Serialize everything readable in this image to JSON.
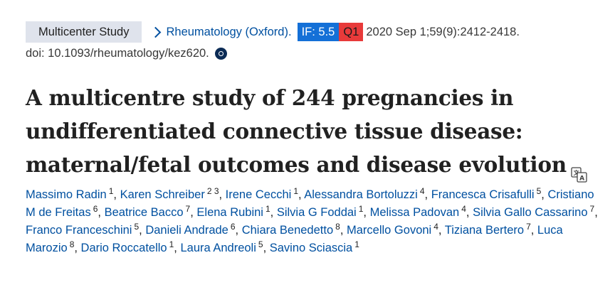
{
  "header": {
    "article_type": "Multicenter Study",
    "journal": "Rheumatology (Oxford).",
    "impact_factor": "IF: 5.5",
    "quartile": "Q1",
    "citation": "2020 Sep 1;59(9):2412-2418.",
    "doi": "doi: 10.1093/rheumatology/kez620."
  },
  "article": {
    "title": "A multicentre study of 244 pregnancies in undifferentiated connective tissue disease: maternal/fetal outcomes and disease evolution"
  },
  "authors": [
    {
      "name": "Massimo Radin",
      "aff": "1"
    },
    {
      "name": "Karen Schreiber",
      "aff": "2 3"
    },
    {
      "name": "Irene Cecchi",
      "aff": "1"
    },
    {
      "name": "Alessandra Bortoluzzi",
      "aff": "4"
    },
    {
      "name": "Francesca Crisafulli",
      "aff": "5"
    },
    {
      "name": "Cristiano M de Freitas",
      "aff": "6"
    },
    {
      "name": "Beatrice Bacco",
      "aff": "7"
    },
    {
      "name": "Elena Rubini",
      "aff": "1"
    },
    {
      "name": "Silvia G Foddai",
      "aff": "1"
    },
    {
      "name": "Melissa Padovan",
      "aff": "4"
    },
    {
      "name": "Silvia Gallo Cassarino",
      "aff": "7"
    },
    {
      "name": "Franco Franceschini",
      "aff": "5"
    },
    {
      "name": "Danieli Andrade",
      "aff": "6"
    },
    {
      "name": "Chiara Benedetto",
      "aff": "8"
    },
    {
      "name": "Marcello Govoni",
      "aff": "4"
    },
    {
      "name": "Tiziana Bertero",
      "aff": "7"
    },
    {
      "name": "Luca Marozio",
      "aff": "8"
    },
    {
      "name": "Dario Roccatello",
      "aff": "1"
    },
    {
      "name": "Laura Andreoli",
      "aff": "5"
    },
    {
      "name": "Savino Sciascia",
      "aff": "1"
    }
  ],
  "icons": {
    "journal_link": "chevron-right-icon",
    "doi_copy": "camera-icon",
    "translate": "translate-icon"
  },
  "colors": {
    "link": "#0050a0",
    "badge_type_bg": "#dfe3ec",
    "impact_factor_bg": "#1470d7",
    "quartile_bg": "#e83a3a"
  }
}
